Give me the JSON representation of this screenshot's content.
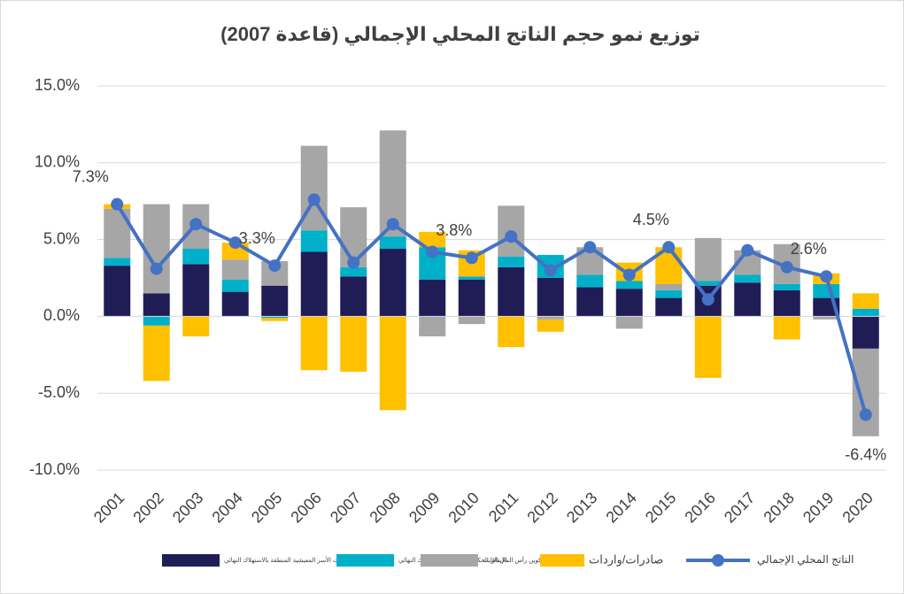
{
  "chart_data": {
    "type": "bar_line",
    "title": "توزيع نمو حجم الناتج المحلي الإجمالي (قاعدة 2007)",
    "categories": [
      "2001",
      "2002",
      "2003",
      "2004",
      "2005",
      "2006",
      "2007",
      "2008",
      "2009",
      "2010",
      "2011",
      "2012",
      "2013",
      "2014",
      "2015",
      "2016",
      "2017",
      "2018",
      "2019",
      "2020"
    ],
    "series": [
      {
        "name": "نفقات الأسر المعيشية المنطقة بالاستهلاك النهائي",
        "color": "#201d56",
        "kind": "bar",
        "values": [
          3.3,
          1.5,
          3.4,
          1.6,
          2.0,
          4.2,
          2.6,
          4.4,
          2.4,
          2.4,
          3.2,
          2.5,
          1.9,
          1.8,
          1.2,
          2.0,
          2.2,
          1.7,
          1.2,
          -2.1
        ]
      },
      {
        "name": "الإنفاق الحكومي المتعلق بالاستهلاك النهائي",
        "color": "#00b0c8",
        "kind": "bar",
        "values": [
          0.5,
          -0.6,
          1.0,
          0.8,
          -0.1,
          1.4,
          0.6,
          0.8,
          2.1,
          0.2,
          0.7,
          1.5,
          0.8,
          0.5,
          0.5,
          0.3,
          0.5,
          0.4,
          0.9,
          0.5
        ]
      },
      {
        "name": "إجمالي تكوين رأس المال الثابت",
        "color": "#a6a6a6",
        "kind": "bar",
        "values": [
          3.2,
          5.8,
          2.9,
          1.3,
          1.6,
          5.5,
          3.9,
          6.9,
          -1.3,
          -0.5,
          3.3,
          -0.2,
          1.8,
          -0.8,
          0.4,
          2.8,
          1.6,
          2.6,
          -0.2,
          -5.7
        ]
      },
      {
        "name": "صادرات/واردات",
        "color": "#ffc000",
        "kind": "bar",
        "values": [
          0.3,
          -3.6,
          -1.3,
          1.1,
          -0.2,
          -3.5,
          -3.6,
          -6.1,
          1.0,
          1.7,
          -2.0,
          -0.8,
          0,
          1.2,
          2.4,
          -4.0,
          0,
          -1.5,
          0.7,
          1.0
        ]
      },
      {
        "name": "الناتج المحلي الإجمالي",
        "color": "#4472c4",
        "kind": "line",
        "values": [
          7.3,
          3.1,
          6.0,
          4.8,
          3.3,
          7.6,
          3.5,
          6.0,
          4.2,
          3.8,
          5.2,
          3.0,
          4.5,
          2.7,
          4.5,
          1.1,
          4.3,
          3.2,
          2.6,
          -6.4
        ],
        "value_labels": [
          "7.3%",
          null,
          null,
          null,
          "3.3%",
          null,
          null,
          null,
          null,
          "3.8%",
          null,
          null,
          null,
          null,
          "4.5%",
          null,
          null,
          null,
          "2.6%",
          "-6.4%"
        ]
      }
    ],
    "ylim": [
      -10,
      15
    ],
    "yticks": [
      {
        "value": -10,
        "label": "-10.0%"
      },
      {
        "value": -5,
        "label": "-5.0%"
      },
      {
        "value": 0,
        "label": "0.0%"
      },
      {
        "value": 5,
        "label": "5.0%"
      },
      {
        "value": 10,
        "label": "10.0%"
      },
      {
        "value": 15,
        "label": "15.0%"
      }
    ],
    "grid": true,
    "legend": "bottom"
  }
}
